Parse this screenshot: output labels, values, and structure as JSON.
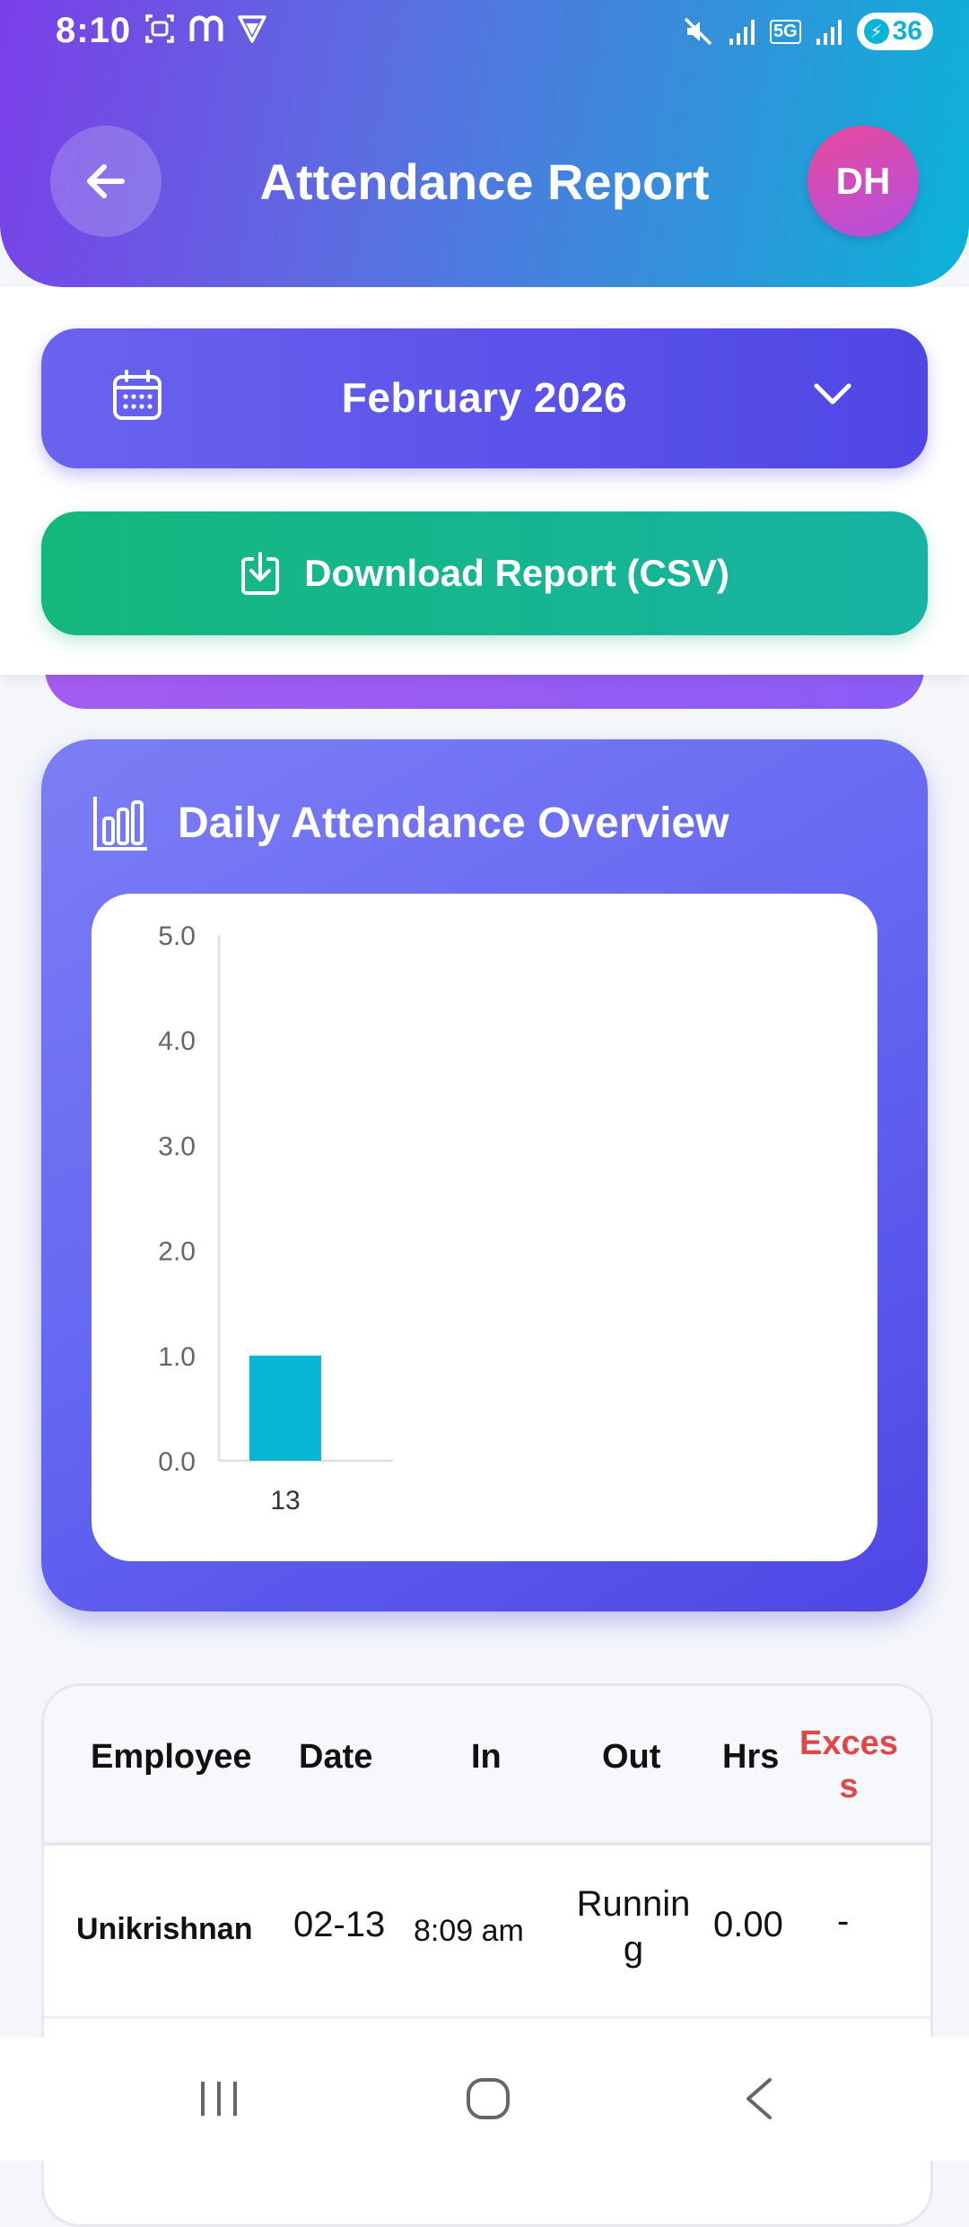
{
  "status_bar": {
    "time": "8:10",
    "left_icons": [
      "screenshot-icon",
      "m-app-icon",
      "vpn-shield-icon"
    ],
    "right_icons": [
      "mute-icon",
      "signal-icon",
      "5g-icon",
      "signal-icon"
    ],
    "network_label": "5G",
    "battery_level": "36"
  },
  "header": {
    "title": "Attendance Report",
    "avatar_initials": "DH"
  },
  "month_selector": {
    "label": "February 2026"
  },
  "download": {
    "label": "Download Report (CSV)"
  },
  "chart_card": {
    "title": "Daily Attendance Overview"
  },
  "chart_data": {
    "type": "bar",
    "categories": [
      "13"
    ],
    "values": [
      1.0
    ],
    "ylim": [
      0,
      5
    ],
    "y_ticks": [
      "0.0",
      "1.0",
      "2.0",
      "3.0",
      "4.0",
      "5.0"
    ],
    "bar_color": "#06b6d4",
    "grid": false
  },
  "table": {
    "headers": {
      "employee": "Employee",
      "date": "Date",
      "in": "In",
      "out": "Out",
      "hrs": "Hrs",
      "excess_line1": "Exces",
      "excess_line2": "s"
    },
    "rows": [
      {
        "employee": "Unikrishnan",
        "date": "02-13",
        "in": "8:09 am",
        "out_line1": "Runnin",
        "out_line2": "g",
        "hrs": "0.00",
        "excess": "-"
      }
    ]
  },
  "colors": {
    "accent": "#4f46e5",
    "download": "#14b87c",
    "excess_header": "#e04848"
  }
}
